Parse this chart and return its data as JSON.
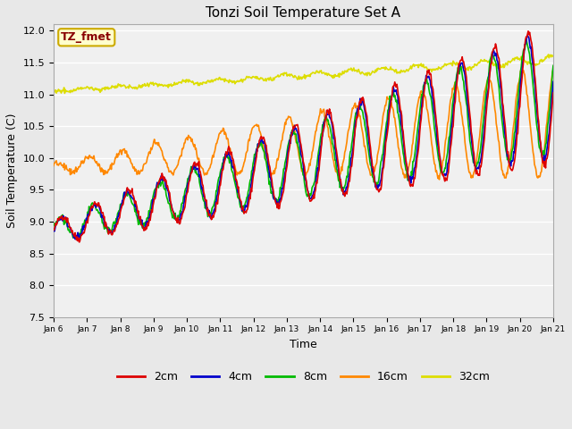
{
  "title": "Tonzi Soil Temperature Set A",
  "xlabel": "Time",
  "ylabel": "Soil Temperature (C)",
  "ylim": [
    7.5,
    12.1
  ],
  "legend_label": "TZ_fmet",
  "legend_box_color": "#ffffcc",
  "legend_box_edge": "#ccaa00",
  "legend_text_color": "#880000",
  "line_colors": {
    "2cm": "#dd0000",
    "4cm": "#0000cc",
    "8cm": "#00bb00",
    "16cm": "#ff8800",
    "32cm": "#dddd00"
  },
  "bg_color": "#e8e8e8",
  "plot_bg_color": "#f0f0f0",
  "n_days": 15,
  "start_day": 6,
  "points_per_day": 48
}
